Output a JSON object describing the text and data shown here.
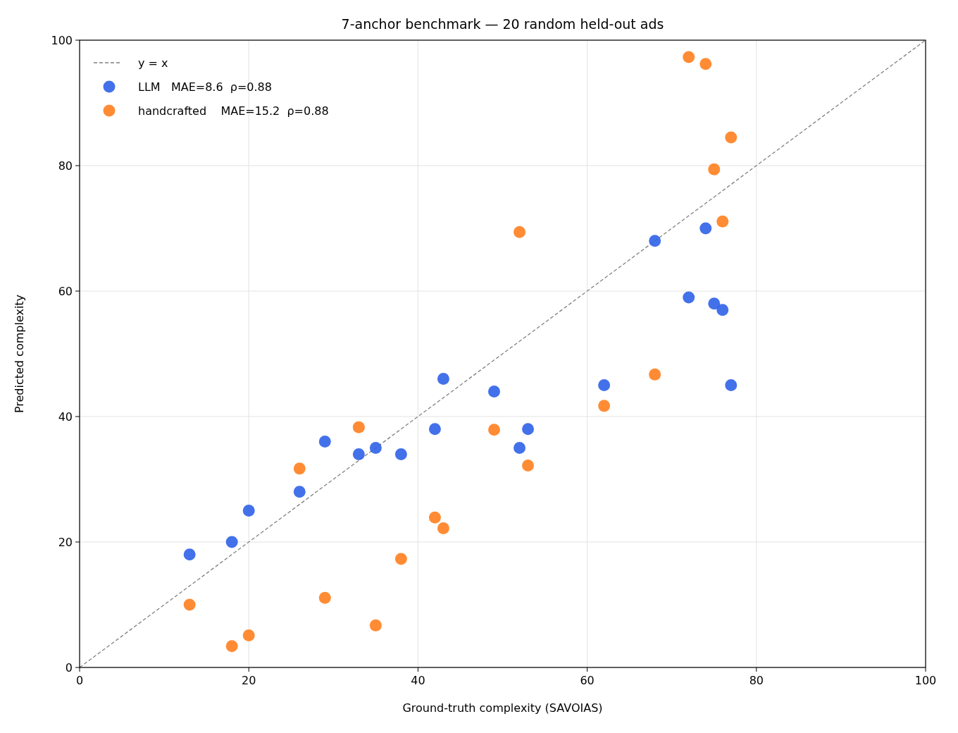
{
  "chart_data": {
    "type": "scatter",
    "title": "7-anchor benchmark — 20 random held-out ads",
    "xlabel": "Ground-truth complexity (SAVOIAS)",
    "ylabel": "Predicted complexity",
    "xlim": [
      0,
      100
    ],
    "ylim": [
      0,
      100
    ],
    "xticks": [
      0,
      20,
      40,
      60,
      80,
      100
    ],
    "yticks": [
      0,
      20,
      40,
      60,
      80,
      100
    ],
    "grid": true,
    "legend": "top left",
    "series": [
      {
        "name": "y = x",
        "type": "line",
        "line_style": "dashed",
        "color": "#808080",
        "x": [
          0,
          100
        ],
        "values": [
          0,
          100
        ]
      },
      {
        "name": "LLM   MAE=8.6  ρ=0.88",
        "marker": "circle",
        "color": "#2f62e8",
        "x": [
          13,
          18,
          20,
          26,
          29,
          33,
          35,
          38,
          42,
          43,
          49,
          52,
          53,
          62,
          68,
          72,
          74,
          75,
          76,
          77
        ],
        "values": [
          18,
          20,
          25,
          28,
          36,
          34,
          35,
          34,
          38,
          46,
          44,
          35,
          38,
          45,
          68,
          59,
          70,
          58,
          57,
          45
        ]
      },
      {
        "name": "handcrafted    MAE=15.2  ρ=0.88",
        "marker": "circle",
        "color": "#ff7f1e",
        "x": [
          13,
          18,
          20,
          26,
          29,
          33,
          35,
          38,
          42,
          43,
          49,
          52,
          53,
          62,
          68,
          72,
          74,
          75,
          76,
          77
        ],
        "values": [
          10.0,
          3.4,
          5.1,
          31.7,
          11.1,
          38.3,
          6.7,
          17.3,
          23.9,
          22.2,
          37.9,
          69.4,
          32.2,
          41.7,
          46.7,
          97.3,
          96.2,
          79.4,
          71.1,
          84.5
        ]
      }
    ]
  }
}
